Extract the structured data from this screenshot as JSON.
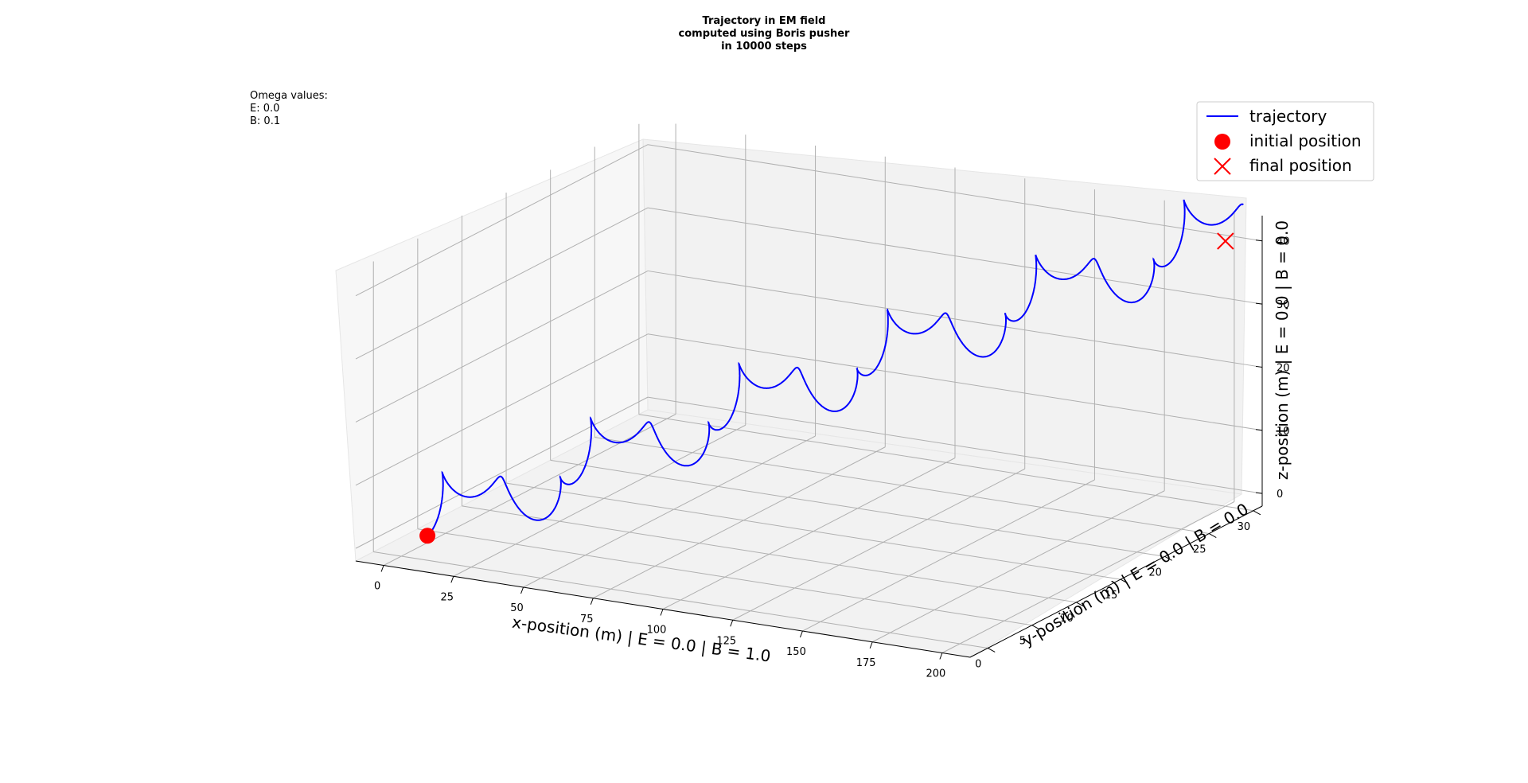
{
  "chart_data": {
    "type": "line3d",
    "title_lines": [
      "Trajectory in EM field",
      "computed using Boris pusher",
      "in 10000 steps"
    ],
    "annotation_lines": [
      "Omega values:",
      "E: 0.0",
      "B: 0.1"
    ],
    "xlabel": "x-position (m) | E = 0.0 | B = 1.0",
    "ylabel": "y-position (m) | E = 0.0 | B = 0.0",
    "zlabel": "z-position (m) | E = 0.0 | B = 0.0",
    "xlim": [
      -10,
      210
    ],
    "ylim": [
      -2,
      31
    ],
    "zlim": [
      -2,
      44
    ],
    "xticks": [
      0,
      25,
      50,
      75,
      100,
      125,
      150,
      175,
      200
    ],
    "yticks": [
      0,
      5,
      10,
      15,
      20,
      25,
      30
    ],
    "zticks": [
      0,
      10,
      20,
      30,
      40
    ],
    "grid": true,
    "legend": {
      "placement": "top-right",
      "entries": [
        {
          "label": "trajectory",
          "marker": "line",
          "color": "#0000ff"
        },
        {
          "label": "initial position",
          "marker": "circle",
          "color": "#ff0000"
        },
        {
          "label": "final position",
          "marker": "x",
          "color": "#ff0000"
        }
      ]
    },
    "series": [
      {
        "name": "trajectory",
        "color": "#0000ff",
        "model": {
          "drift_x_per_cycle": 36,
          "drift_y_per_cycle": 5.4,
          "drift_z_per_cycle": 7.2,
          "cycles": 5.5,
          "gyro_radius_x": 2.5,
          "gyro_radius_z": 2.5,
          "loops_per_cycle": 3
        }
      }
    ],
    "initial_position": {
      "x": 3,
      "y": 2,
      "z": 0
    },
    "final_position": {
      "x": 200,
      "y": 30,
      "z": 40
    }
  }
}
